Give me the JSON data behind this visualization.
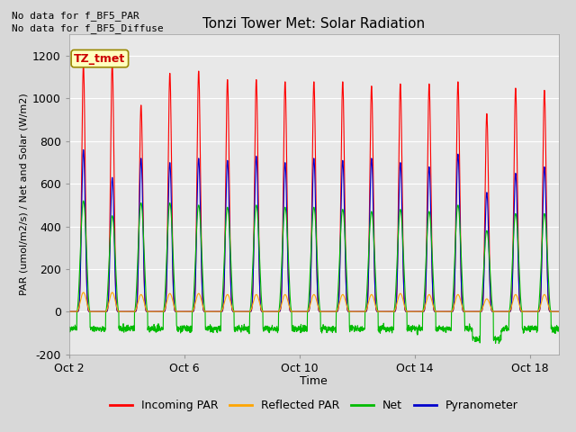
{
  "title": "Tonzi Tower Met: Solar Radiation",
  "xlabel": "Time",
  "ylabel": "PAR (umol/m2/s) / Net and Solar (W/m2)",
  "ylim": [
    -200,
    1300
  ],
  "yticks": [
    -200,
    0,
    200,
    400,
    600,
    800,
    1000,
    1200
  ],
  "background_color": "#d8d8d8",
  "plot_bg_color": "#e8e8e8",
  "text_no_data1": "No data for f_BF5_PAR",
  "text_no_data2": "No data for f_BF5_Diffuse",
  "legend_label_box": "TZ_tmet",
  "legend_entries": [
    "Incoming PAR",
    "Reflected PAR",
    "Net",
    "Pyranometer"
  ],
  "colors": {
    "incoming_par": "#ff0000",
    "reflected_par": "#ffa500",
    "net": "#00bb00",
    "pyranometer": "#0000cc"
  },
  "n_days": 17,
  "par_peaks": [
    1160,
    1170,
    970,
    1120,
    1130,
    1090,
    1090,
    1080,
    1080,
    1080,
    1060,
    1070,
    1070,
    1080,
    930,
    1050,
    1040
  ],
  "pyra_peaks": [
    760,
    630,
    720,
    700,
    720,
    710,
    730,
    700,
    720,
    710,
    720,
    700,
    680,
    740,
    560,
    650,
    680
  ],
  "net_peaks": [
    520,
    450,
    510,
    510,
    500,
    490,
    500,
    490,
    490,
    480,
    470,
    480,
    470,
    500,
    380,
    460,
    460
  ],
  "refl_peaks": [
    90,
    90,
    80,
    85,
    85,
    80,
    80,
    80,
    80,
    80,
    80,
    85,
    80,
    80,
    60,
    80,
    80
  ],
  "net_troughs": [
    -80,
    -80,
    -80,
    -80,
    -80,
    -80,
    -80,
    -80,
    -80,
    -80,
    -80,
    -80,
    -80,
    -80,
    -130,
    -80,
    -80
  ],
  "xtick_positions": [
    0,
    4,
    8,
    12,
    16
  ],
  "xtick_labels": [
    "Oct 2",
    "Oct 6",
    "Oct 10",
    "Oct 14",
    "Oct 18"
  ]
}
